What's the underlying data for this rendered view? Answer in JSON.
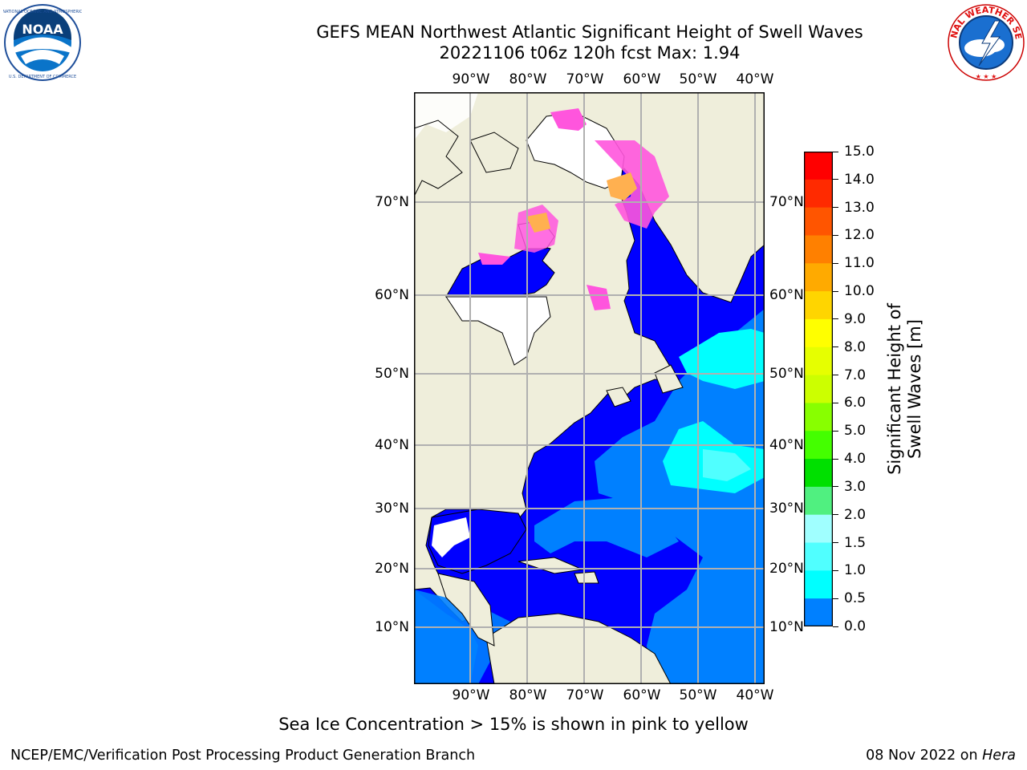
{
  "header": {
    "title_line1": "GEFS MEAN Northwest Atlantic Significant Height of Swell Waves",
    "title_line2": "20221106 t06z 120h fcst   Max: 1.94"
  },
  "logos": {
    "left": {
      "name": "NOARA logo",
      "text": "NOAA",
      "ring_text": "NATIONAL OCEANIC AND ATMOSPHERIC ADMINISTRATION · U.S. DEPARTMENT OF COMMERCE"
    },
    "right": {
      "name": "National Weather Service logo",
      "ring_text": "NATIONAL WEATHER SERVICE"
    }
  },
  "map": {
    "lon_labels": [
      "90°W",
      "80°W",
      "70°W",
      "60°W",
      "50°W",
      "40°W"
    ],
    "lat_labels": [
      "70°N",
      "60°N",
      "50°N",
      "40°N",
      "30°N",
      "20°N",
      "10°N"
    ],
    "colors": {
      "land": "#efeedb",
      "ocean_low": "#0000ff",
      "ocean_mid": "#0080ff",
      "ocean_high": "#00ffff",
      "ice_pink": "#ff55dd",
      "ice_orange": "#ffb050",
      "grid": "#b0b0b0"
    }
  },
  "colorbar": {
    "title": "Significant Height of Swell Waves [m]",
    "ticks": [
      "15.0",
      "14.0",
      "13.0",
      "12.0",
      "11.0",
      "10.0",
      "9.0",
      "8.0",
      "7.0",
      "6.0",
      "5.0",
      "4.0",
      "3.0",
      "2.0",
      "1.5",
      "1.0",
      "0.5",
      "0.0"
    ],
    "colors": [
      "#ff0000",
      "#ff2a00",
      "#ff5500",
      "#ff8000",
      "#ffaa00",
      "#ffd500",
      "#ffff00",
      "#e6ff00",
      "#ccff00",
      "#88ff00",
      "#44ff00",
      "#00e000",
      "#50f080",
      "#a0ffff",
      "#50ffff",
      "#00ffff",
      "#0080ff",
      "#0000ff"
    ]
  },
  "footer": {
    "note": "Sea Ice Concentration > 15% is shown in pink to yellow",
    "credit": "NCEP/EMC/Verification Post Processing Product Generation Branch",
    "date": "08 Nov 2022 on",
    "host": "Hera"
  }
}
